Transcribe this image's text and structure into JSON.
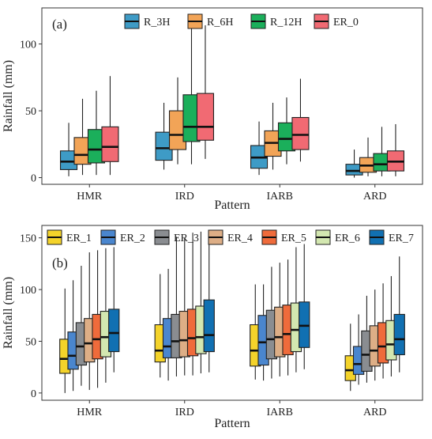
{
  "chart_data": [
    {
      "type": "boxplot",
      "panel_label": "(a)",
      "xlabel": "Pattern",
      "ylabel": "Rainfall (mm)",
      "categories": [
        "HMR",
        "IRD",
        "IARB",
        "ARD"
      ],
      "ylim": [
        -5,
        127
      ],
      "yticks": [
        0,
        50,
        100
      ],
      "grid": false,
      "legend_position": "top",
      "series": [
        {
          "name": "R_3H",
          "color": "#3E9BC6",
          "stats": [
            {
              "min": 1,
              "q1": 6,
              "median": 12,
              "q3": 20,
              "max": 41
            },
            {
              "min": 6,
              "q1": 13,
              "median": 22,
              "q3": 34,
              "max": 56
            },
            {
              "min": 2,
              "q1": 7,
              "median": 15,
              "q3": 24,
              "max": 42
            },
            {
              "min": 0,
              "q1": 2,
              "median": 5,
              "q3": 10,
              "max": 21
            }
          ]
        },
        {
          "name": "R_6H",
          "color": "#F2A457",
          "stats": [
            {
              "min": 2,
              "q1": 10,
              "median": 17,
              "q3": 30,
              "max": 59
            },
            {
              "min": 10,
              "q1": 21,
              "median": 32,
              "q3": 50,
              "max": 75
            },
            {
              "min": 6,
              "q1": 16,
              "median": 26,
              "q3": 35,
              "max": 56
            },
            {
              "min": 1,
              "q1": 4,
              "median": 9,
              "q3": 15,
              "max": 30
            }
          ]
        },
        {
          "name": "R_12H",
          "color": "#1BAF5B",
          "stats": [
            {
              "min": 2,
              "q1": 11,
              "median": 21,
              "q3": 36,
              "max": 65
            },
            {
              "min": 10,
              "q1": 27,
              "median": 38,
              "q3": 62,
              "max": 113
            },
            {
              "min": 10,
              "q1": 20,
              "median": 29,
              "q3": 41,
              "max": 60
            },
            {
              "min": 1,
              "q1": 5,
              "median": 10,
              "q3": 18,
              "max": 38
            }
          ]
        },
        {
          "name": "ER_0",
          "color": "#F16A73",
          "stats": [
            {
              "min": 2,
              "q1": 12,
              "median": 23,
              "q3": 38,
              "max": 76
            },
            {
              "min": 14,
              "q1": 28,
              "median": 38,
              "q3": 63,
              "max": 114
            },
            {
              "min": 12,
              "q1": 21,
              "median": 32,
              "q3": 45,
              "max": 74
            },
            {
              "min": 1,
              "q1": 5,
              "median": 12,
              "q3": 20,
              "max": 40
            }
          ]
        }
      ]
    },
    {
      "type": "boxplot",
      "panel_label": "(b)",
      "xlabel": "Pattern",
      "ylabel": "Rainfall (mm)",
      "categories": [
        "HMR",
        "IRD",
        "IARB",
        "ARD"
      ],
      "ylim": [
        -7,
        162
      ],
      "yticks": [
        0,
        50,
        100,
        150
      ],
      "grid": false,
      "legend_position": "top",
      "series": [
        {
          "name": "ER_1",
          "color": "#F4D32A",
          "stats": [
            {
              "min": 0,
              "q1": 19,
              "median": 33,
              "q3": 52,
              "max": 101
            },
            {
              "min": 15,
              "q1": 30,
              "median": 41,
              "q3": 66,
              "max": 115
            },
            {
              "min": 13,
              "q1": 26,
              "median": 41,
              "q3": 66,
              "max": 105
            },
            {
              "min": 2,
              "q1": 12,
              "median": 22,
              "q3": 36,
              "max": 67
            }
          ]
        },
        {
          "name": "ER_2",
          "color": "#4A86CE",
          "stats": [
            {
              "min": 2,
              "q1": 23,
              "median": 36,
              "q3": 59,
              "max": 109
            },
            {
              "min": 12,
              "q1": 34,
              "median": 45,
              "q3": 72,
              "max": 120
            },
            {
              "min": 12,
              "q1": 27,
              "median": 49,
              "q3": 75,
              "max": 105
            },
            {
              "min": 8,
              "q1": 18,
              "median": 28,
              "q3": 45,
              "max": 76
            }
          ]
        },
        {
          "name": "ER_3",
          "color": "#8A8D91",
          "stats": [
            {
              "min": 7,
              "q1": 27,
              "median": 45,
              "q3": 68,
              "max": 123
            },
            {
              "min": 16,
              "q1": 34,
              "median": 50,
              "q3": 76,
              "max": 151
            },
            {
              "min": 14,
              "q1": 33,
              "median": 52,
              "q3": 80,
              "max": 122
            },
            {
              "min": 10,
              "q1": 21,
              "median": 37,
              "q3": 60,
              "max": 94
            }
          ]
        },
        {
          "name": "ER_4",
          "color": "#DDAE86",
          "stats": [
            {
              "min": 3,
              "q1": 30,
              "median": 48,
              "q3": 72,
              "max": 136
            },
            {
              "min": 17,
              "q1": 35,
              "median": 51,
              "q3": 79,
              "max": 150
            },
            {
              "min": 16,
              "q1": 35,
              "median": 54,
              "q3": 83,
              "max": 126
            },
            {
              "min": 12,
              "q1": 26,
              "median": 41,
              "q3": 65,
              "max": 100
            }
          ]
        },
        {
          "name": "ER_5",
          "color": "#EF6B3B",
          "stats": [
            {
              "min": 5,
              "q1": 33,
              "median": 52,
              "q3": 76,
              "max": 138
            },
            {
              "min": 17,
              "q1": 36,
              "median": 53,
              "q3": 81,
              "max": 155
            },
            {
              "min": 17,
              "q1": 37,
              "median": 57,
              "q3": 85,
              "max": 129
            },
            {
              "min": 14,
              "q1": 29,
              "median": 45,
              "q3": 68,
              "max": 106
            }
          ]
        },
        {
          "name": "ER_6",
          "color": "#D3E7B0",
          "stats": [
            {
              "min": 10,
              "q1": 35,
              "median": 54,
              "q3": 79,
              "max": 140
            },
            {
              "min": 19,
              "q1": 38,
              "median": 54,
              "q3": 84,
              "max": 156
            },
            {
              "min": 20,
              "q1": 40,
              "median": 61,
              "q3": 87,
              "max": 141
            },
            {
              "min": 16,
              "q1": 32,
              "median": 47,
              "q3": 70,
              "max": 113
            }
          ]
        },
        {
          "name": "ER_7",
          "color": "#1170B2",
          "stats": [
            {
              "min": 20,
              "q1": 40,
              "median": 58,
              "q3": 81,
              "max": 141
            },
            {
              "min": 20,
              "q1": 40,
              "median": 56,
              "q3": 90,
              "max": 157
            },
            {
              "min": 23,
              "q1": 44,
              "median": 65,
              "q3": 88,
              "max": 144
            },
            {
              "min": 20,
              "q1": 37,
              "median": 52,
              "q3": 76,
              "max": 132
            }
          ]
        }
      ]
    }
  ]
}
